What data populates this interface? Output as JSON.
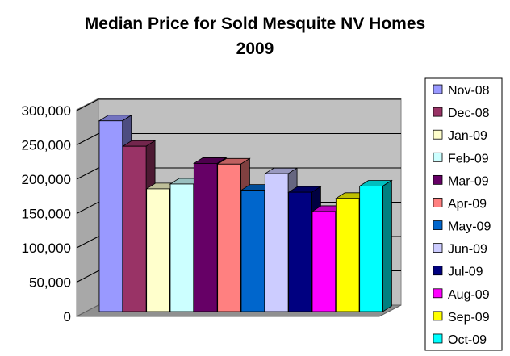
{
  "chart_data": {
    "type": "bar",
    "title": "Median Price for Sold Mesquite NV Homes",
    "subtitle": "2009",
    "xlabel": "",
    "ylabel": "",
    "ylim": [
      0,
      300000
    ],
    "y_ticks": [
      "0",
      "50,000",
      "100,000",
      "150,000",
      "200,000",
      "250,000",
      "300,000"
    ],
    "grid": true,
    "legend_position": "right",
    "categories": [
      "Nov-08",
      "Dec-08",
      "Jan-09",
      "Feb-09",
      "Mar-09",
      "Apr-09",
      "May-09",
      "Jun-09",
      "Jul-09",
      "Aug-09",
      "Sep-09",
      "Oct-09"
    ],
    "values": [
      285000,
      248000,
      186000,
      193000,
      223000,
      222000,
      184000,
      208000,
      181000,
      153000,
      172000,
      190000
    ],
    "colors": [
      "#9999ff",
      "#993366",
      "#ffffcc",
      "#ccffff",
      "#660066",
      "#ff8080",
      "#0066cc",
      "#ccccff",
      "#000080",
      "#ff00ff",
      "#ffff00",
      "#00ffff"
    ]
  }
}
